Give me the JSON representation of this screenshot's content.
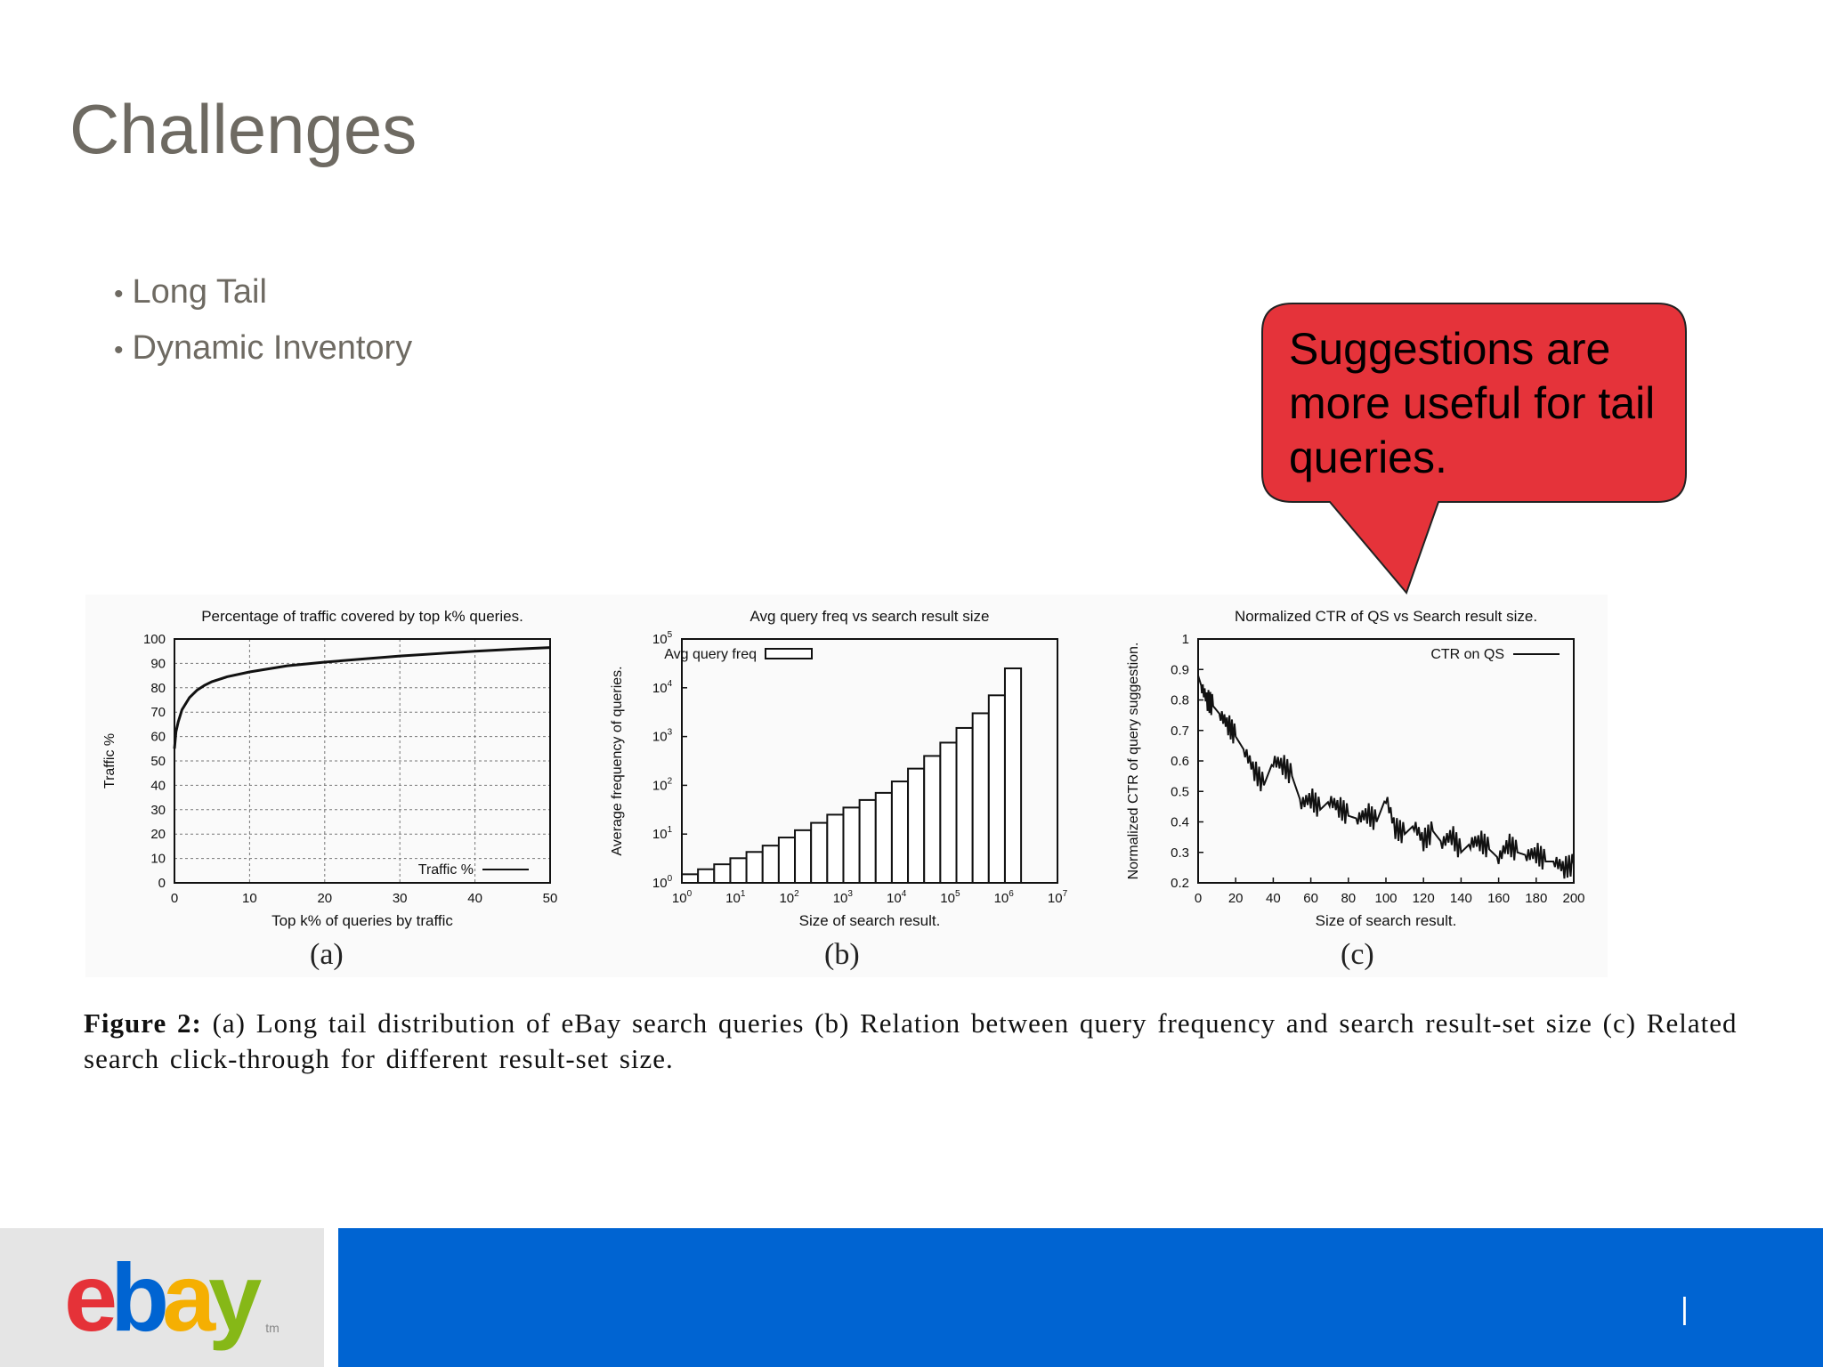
{
  "slide": {
    "title": "Challenges",
    "bullets": [
      "Long Tail",
      "Dynamic Inventory"
    ]
  },
  "callout": {
    "text": "Suggestions are more useful for tail queries.",
    "color": "#e5333a"
  },
  "chart_data": [
    {
      "type": "line",
      "title": "Percentage of traffic covered by top k% queries.",
      "xlabel": "Top k% of queries by traffic",
      "ylabel": "Traffic %",
      "xlim": [
        0,
        50
      ],
      "ylim": [
        0,
        100
      ],
      "xticks": [
        0,
        10,
        20,
        30,
        40,
        50
      ],
      "yticks": [
        0,
        10,
        20,
        30,
        40,
        50,
        60,
        70,
        80,
        90,
        100
      ],
      "grid": true,
      "legend_position": "bottom-right",
      "sublabel": "(a)",
      "series": [
        {
          "name": "Traffic %",
          "x": [
            0,
            0.2,
            0.5,
            1,
            2,
            3,
            4,
            5,
            7,
            10,
            15,
            20,
            25,
            30,
            35,
            40,
            45,
            50
          ],
          "y": [
            55,
            62,
            66,
            71,
            76,
            79,
            81,
            82.5,
            84.5,
            86.5,
            89,
            90.5,
            91.8,
            93,
            94,
            95,
            95.8,
            96.5
          ]
        }
      ]
    },
    {
      "type": "bar",
      "title": "Avg query freq vs search result size",
      "xlabel": "Size of search result.",
      "ylabel": "Average frequency of queries.",
      "xscale": "log",
      "yscale": "log",
      "xlim": [
        1,
        10000000
      ],
      "ylim": [
        1,
        100000
      ],
      "xticks": [
        "10^0",
        "10^1",
        "10^2",
        "10^3",
        "10^4",
        "10^5",
        "10^6",
        "10^7"
      ],
      "yticks": [
        "10^0",
        "10^1",
        "10^2",
        "10^3",
        "10^4",
        "10^5"
      ],
      "legend_position": "top-left",
      "sublabel": "(b)",
      "series": [
        {
          "name": "Avg query freq",
          "x": [
            1,
            2,
            4,
            8,
            16,
            32,
            64,
            128,
            256,
            512,
            1024,
            2048,
            4096,
            8192,
            16384,
            32768,
            65536,
            131072,
            262144,
            524288,
            1048576
          ],
          "values": [
            1.5,
            1.9,
            2.4,
            3.2,
            4.3,
            5.8,
            8.5,
            12,
            17,
            25,
            35,
            50,
            70,
            120,
            220,
            400,
            750,
            1500,
            3000,
            7000,
            25000
          ]
        }
      ]
    },
    {
      "type": "line",
      "title": "Normalized CTR of QS vs Search result size.",
      "xlabel": "Size of search result.",
      "ylabel": "Normalized CTR of query suggestion.",
      "xlim": [
        0,
        200
      ],
      "ylim": [
        0.2,
        1
      ],
      "xticks": [
        0,
        20,
        40,
        60,
        80,
        100,
        120,
        140,
        160,
        180,
        200
      ],
      "yticks": [
        0.2,
        0.3,
        0.4,
        0.5,
        0.6,
        0.7,
        0.8,
        0.9,
        1
      ],
      "legend_position": "top-right",
      "sublabel": "(c)",
      "series": [
        {
          "name": "CTR on QS",
          "x": [
            0,
            2,
            5,
            8,
            12,
            16,
            20,
            25,
            30,
            35,
            40,
            45,
            50,
            55,
            60,
            65,
            70,
            75,
            80,
            85,
            90,
            95,
            100,
            105,
            110,
            115,
            120,
            125,
            130,
            135,
            140,
            145,
            150,
            155,
            160,
            165,
            170,
            175,
            180,
            185,
            190,
            195,
            200
          ],
          "y": [
            0.88,
            0.84,
            0.8,
            0.78,
            0.75,
            0.72,
            0.68,
            0.63,
            0.57,
            0.52,
            0.6,
            0.59,
            0.55,
            0.46,
            0.48,
            0.44,
            0.47,
            0.45,
            0.42,
            0.41,
            0.43,
            0.4,
            0.48,
            0.38,
            0.36,
            0.39,
            0.34,
            0.37,
            0.33,
            0.36,
            0.3,
            0.33,
            0.34,
            0.31,
            0.28,
            0.33,
            0.3,
            0.29,
            0.3,
            0.27,
            0.27,
            0.25,
            0.26
          ]
        }
      ]
    }
  ],
  "figure_caption": {
    "label": "Figure 2:",
    "text": "(a) Long tail distribution of eBay search queries (b) Relation between query frequency and search result-set size (c) Related search click-through for different result-set size."
  },
  "footer": {
    "logo_letters": [
      "e",
      "b",
      "a",
      "y"
    ],
    "logo_colors": [
      "#e53238",
      "#0064d2",
      "#f5af02",
      "#86b817"
    ],
    "logo_tm": "tm",
    "separator": "|",
    "bar_color": "#0064d2"
  }
}
